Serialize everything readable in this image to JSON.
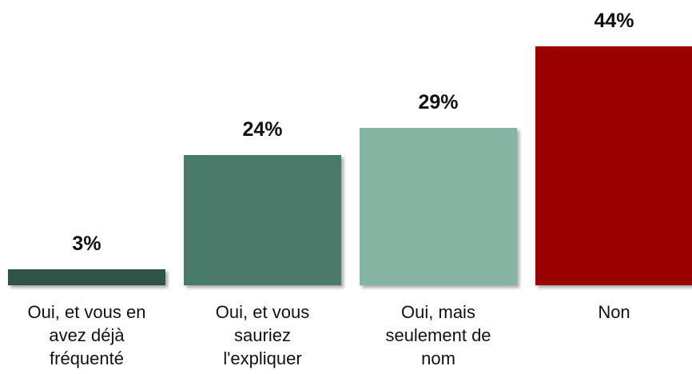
{
  "chart_data": {
    "type": "bar",
    "categories": [
      "Oui, et vous en avez déjà fréquenté",
      "Oui, et vous sauriez l'expliquer",
      "Oui, mais seulement de nom",
      "Non"
    ],
    "values": [
      3,
      24,
      29,
      44
    ],
    "value_labels": [
      "3%",
      "24%",
      "29%",
      "44%"
    ],
    "colors": [
      "#2f5446",
      "#4a7a6a",
      "#84b5a3",
      "#990000"
    ]
  }
}
